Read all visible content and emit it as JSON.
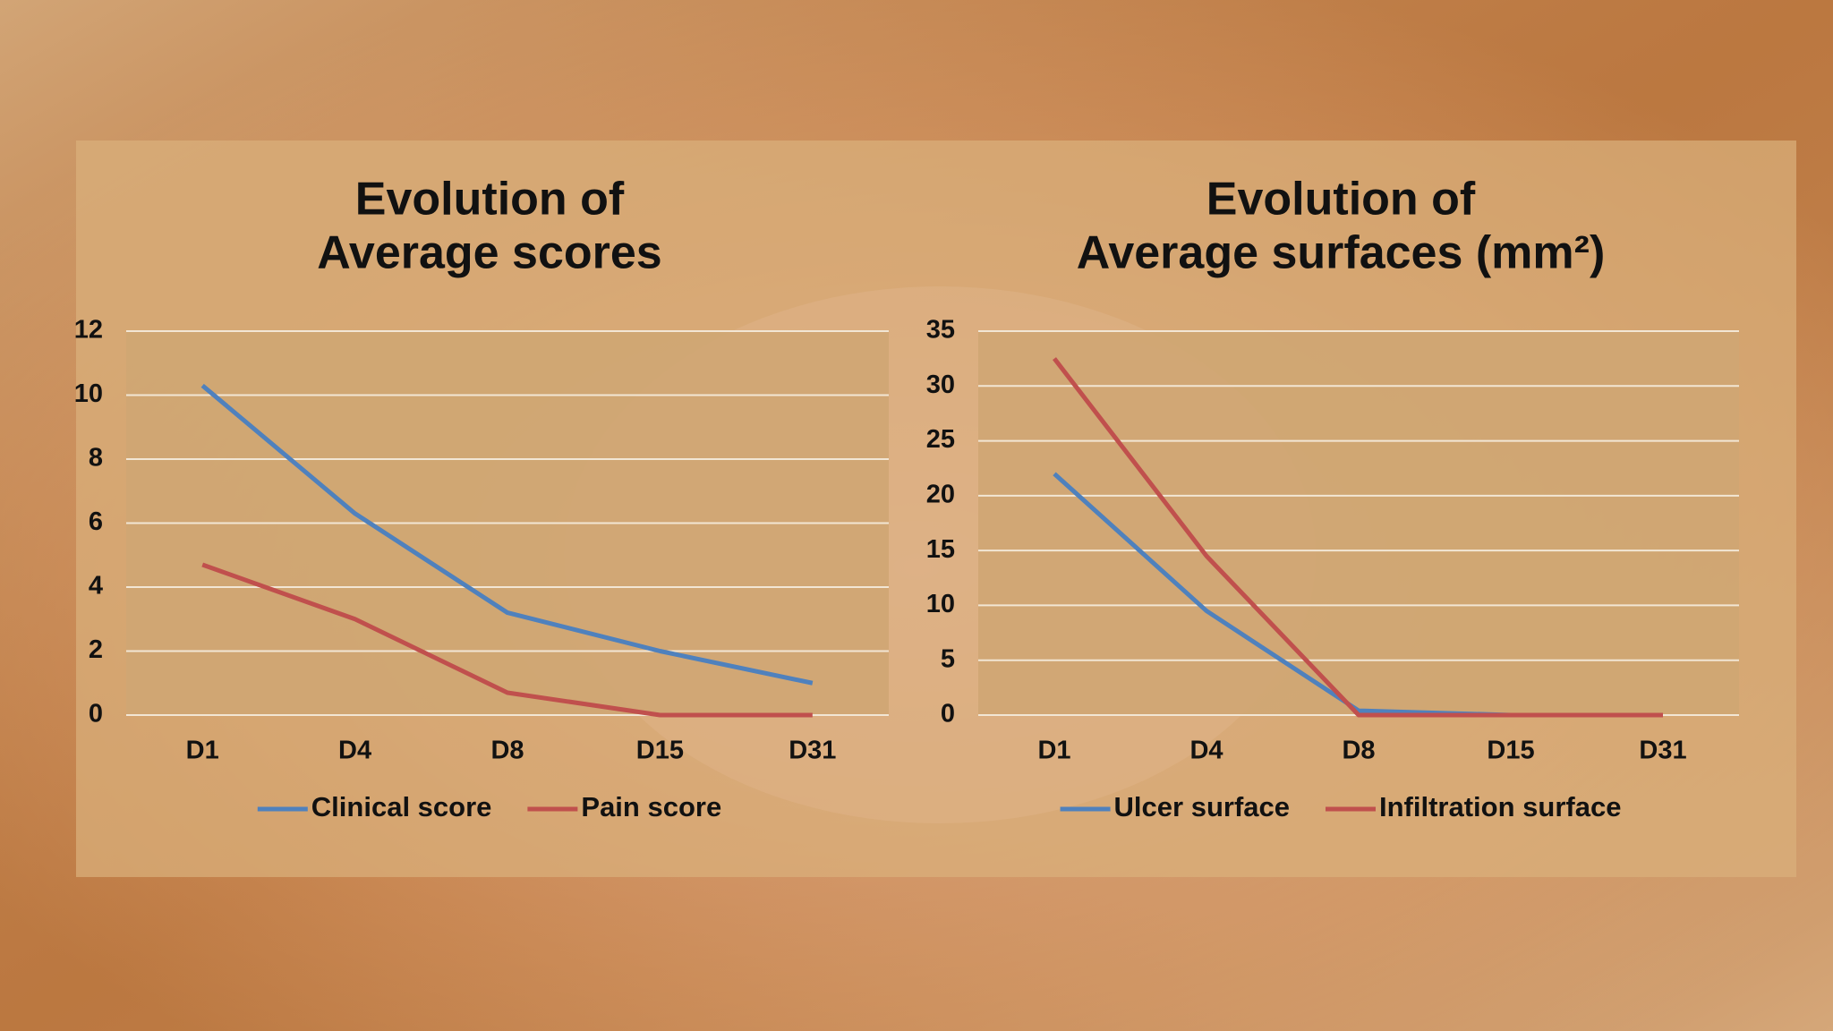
{
  "chart_data": [
    {
      "type": "line",
      "title": [
        "Evolution of",
        "Average scores"
      ],
      "categories": [
        "D1",
        "D4",
        "D8",
        "D15",
        "D31"
      ],
      "series": [
        {
          "name": "Clinical score",
          "color": "#4f81bd",
          "values": [
            10.3,
            6.3,
            3.2,
            2.0,
            1.0
          ]
        },
        {
          "name": "Pain score",
          "color": "#c0504d",
          "values": [
            4.7,
            3.0,
            0.7,
            0,
            0
          ]
        }
      ],
      "ylim": [
        0,
        12
      ],
      "yticks": [
        0,
        2,
        4,
        6,
        8,
        10,
        12
      ],
      "grid": true,
      "legend": "bottom"
    },
    {
      "type": "line",
      "title": [
        "Evolution of",
        "Average surfaces (mm²)"
      ],
      "categories": [
        "D1",
        "D4",
        "D8",
        "D15",
        "D31"
      ],
      "series": [
        {
          "name": "Ulcer surface",
          "color": "#4f81bd",
          "values": [
            22,
            9.5,
            0.4,
            0,
            0
          ]
        },
        {
          "name": "Infiltration surface",
          "color": "#c0504d",
          "values": [
            32.5,
            14.5,
            0,
            0,
            0
          ]
        }
      ],
      "ylim": [
        0,
        35
      ],
      "yticks": [
        0,
        5,
        10,
        15,
        20,
        25,
        30,
        35
      ],
      "grid": true,
      "legend": "bottom"
    }
  ]
}
